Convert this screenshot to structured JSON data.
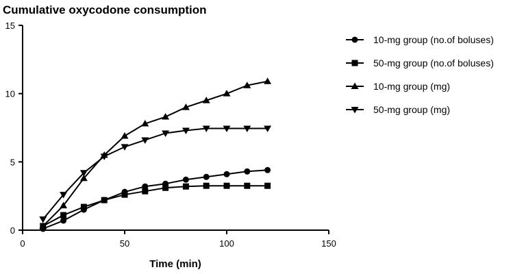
{
  "chart_data": {
    "type": "line",
    "title": "Cumulative oxycodone consumption",
    "xlabel": "Time (min)",
    "ylabel": "",
    "xlim": [
      0,
      150
    ],
    "ylim": [
      0,
      15
    ],
    "xticks": [
      0,
      50,
      100,
      150
    ],
    "yticks": [
      0,
      5,
      10,
      15
    ],
    "x": [
      10,
      20,
      30,
      40,
      50,
      60,
      70,
      80,
      90,
      100,
      110,
      120
    ],
    "grid": false,
    "legend_position": "right",
    "series": [
      {
        "name": "10-mg group (no.of boluses)",
        "marker": "circle",
        "values": [
          0.1,
          0.7,
          1.5,
          2.2,
          2.8,
          3.2,
          3.4,
          3.7,
          3.9,
          4.1,
          4.3,
          4.4
        ]
      },
      {
        "name": "50-mg group (no.of boluses)",
        "marker": "square",
        "values": [
          0.3,
          1.1,
          1.7,
          2.2,
          2.6,
          2.85,
          3.1,
          3.2,
          3.25,
          3.25,
          3.25,
          3.25
        ]
      },
      {
        "name": "10-mg group (mg)",
        "marker": "triangle-up",
        "values": [
          0.3,
          1.8,
          3.8,
          5.5,
          6.9,
          7.8,
          8.3,
          9.0,
          9.5,
          10.0,
          10.6,
          10.9
        ]
      },
      {
        "name": "50-mg group (mg)",
        "marker": "triangle-down",
        "values": [
          0.8,
          2.6,
          4.2,
          5.4,
          6.1,
          6.6,
          7.1,
          7.3,
          7.45,
          7.45,
          7.45,
          7.45
        ]
      }
    ]
  }
}
